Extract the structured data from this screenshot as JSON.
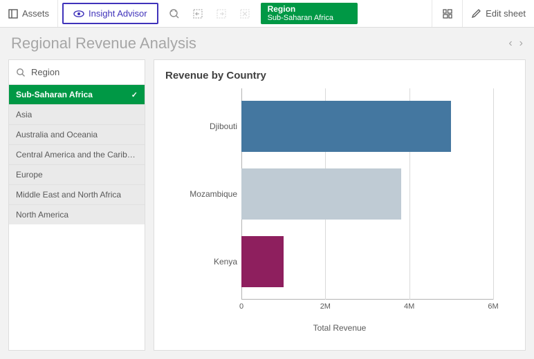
{
  "toolbar": {
    "assets_label": "Assets",
    "insight_label": "Insight Advisor",
    "edit_label": "Edit sheet",
    "selection": {
      "field": "Region",
      "value": "Sub-Saharan Africa",
      "bg_color": "#009845"
    }
  },
  "header": {
    "title": "Regional Revenue Analysis"
  },
  "filter": {
    "field": "Region",
    "items": [
      {
        "label": "Sub-Saharan Africa",
        "selected": true
      },
      {
        "label": "Asia",
        "selected": false
      },
      {
        "label": "Australia and Oceania",
        "selected": false
      },
      {
        "label": "Central America and the Carib…",
        "selected": false
      },
      {
        "label": "Europe",
        "selected": false
      },
      {
        "label": "Middle East and North Africa",
        "selected": false
      },
      {
        "label": "North America",
        "selected": false
      }
    ]
  },
  "chart": {
    "type": "bar-horizontal",
    "title": "Revenue by Country",
    "x_axis_title": "Total Revenue",
    "xlim": [
      0,
      6000000
    ],
    "xticks": [
      {
        "value": 0,
        "label": "0"
      },
      {
        "value": 2000000,
        "label": "2M"
      },
      {
        "value": 4000000,
        "label": "4M"
      },
      {
        "value": 6000000,
        "label": "6M"
      }
    ],
    "grid_color": "#d9d9d9",
    "axis_color": "#b3b3b3",
    "background_color": "#ffffff",
    "bars": [
      {
        "label": "Djibouti",
        "value": 5000000,
        "color": "#4477a0"
      },
      {
        "label": "Mozambique",
        "value": 3800000,
        "color": "#bfcbd4"
      },
      {
        "label": "Kenya",
        "value": 1000000,
        "color": "#8e1f5e"
      }
    ]
  }
}
